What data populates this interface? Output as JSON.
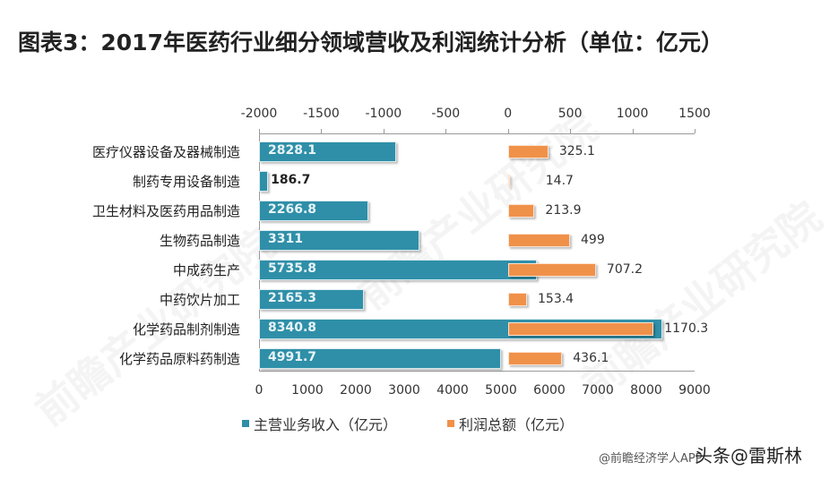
{
  "title": "图表3：2017年医药行业细分领域营收及利润统计分析（单位：亿元）",
  "chart_data": {
    "type": "bar",
    "orientation": "horizontal",
    "title": "图表3：2017年医药行业细分领域营收及利润统计分析（单位：亿元）",
    "categories": [
      "医疗仪器设备及器械制造",
      "制药专用设备制造",
      "卫生材料及医药用品制造",
      "生物药品制造",
      "中成药生产",
      "中药饮片加工",
      "化学药品制剂制造",
      "化学药品原料药制造"
    ],
    "series": [
      {
        "name": "主营业务收入（亿元）",
        "axis": "bottom",
        "color": "#2f8fa8",
        "values": [
          2828.1,
          186.7,
          2266.8,
          3311,
          5735.8,
          2165.3,
          8340.8,
          4991.7
        ]
      },
      {
        "name": "利润总额（亿元）",
        "axis": "top",
        "color": "#f0914a",
        "values": [
          325.1,
          14.7,
          213.9,
          499,
          707.2,
          153.4,
          1170.3,
          436.1
        ]
      }
    ],
    "top_axis": {
      "ticks": [
        -2000,
        -1500,
        -1000,
        -500,
        0,
        500,
        1000,
        1500
      ],
      "range": [
        -2000,
        1500
      ]
    },
    "bottom_axis": {
      "ticks": [
        0,
        1000,
        2000,
        3000,
        4000,
        5000,
        6000,
        7000,
        8000,
        9000
      ],
      "range": [
        0,
        9000
      ]
    },
    "xlabel": "",
    "ylabel": "",
    "legend_position": "bottom",
    "grid": false
  },
  "top_axis_labels": [
    "-2000",
    "-1500",
    "-1000",
    "-500",
    "0",
    "500",
    "1000",
    "1500"
  ],
  "bottom_axis_labels": [
    "0",
    "1000",
    "2000",
    "3000",
    "4000",
    "5000",
    "6000",
    "7000",
    "8000",
    "9000"
  ],
  "rows": [
    {
      "category": "医疗仪器设备及器械制造",
      "revenue": "2828.1",
      "profit": "325.1"
    },
    {
      "category": "制药专用设备制造",
      "revenue": "186.7",
      "profit": "14.7"
    },
    {
      "category": "卫生材料及医药用品制造",
      "revenue": "2266.8",
      "profit": "213.9"
    },
    {
      "category": "生物药品制造",
      "revenue": "3311",
      "profit": "499"
    },
    {
      "category": "中成药生产",
      "revenue": "5735.8",
      "profit": "707.2"
    },
    {
      "category": "中药饮片加工",
      "revenue": "2165.3",
      "profit": "153.4"
    },
    {
      "category": "化学药品制剂制造",
      "revenue": "8340.8",
      "profit": "1170.3"
    },
    {
      "category": "化学药品原料药制造",
      "revenue": "4991.7",
      "profit": "436.1"
    }
  ],
  "legend": {
    "revenue": "主营业务收入（亿元）",
    "profit": "利润总额（亿元）"
  },
  "colors": {
    "revenue": "#2f8fa8",
    "profit": "#f0914a"
  },
  "source": "@前瞻经济学人APP",
  "credit": "头条@雷斯林",
  "watermark": "前瞻产业研究院"
}
